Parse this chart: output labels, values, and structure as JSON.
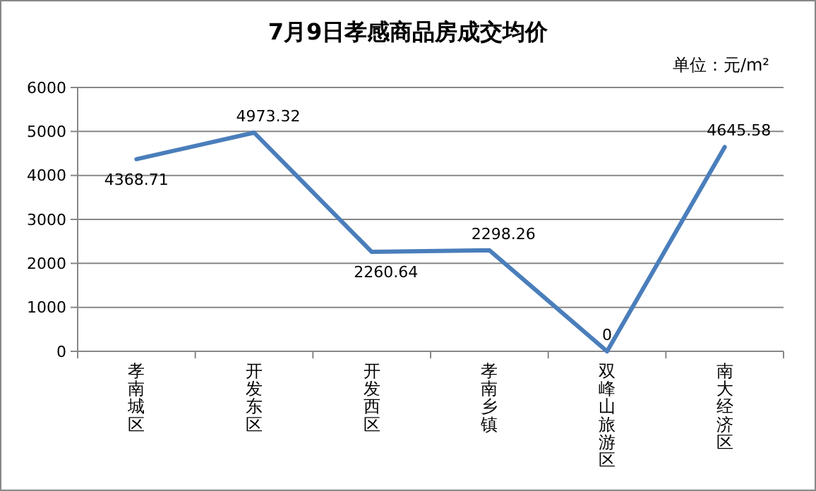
{
  "chart_data": {
    "type": "line",
    "title": "7月9日孝感商品房成交均价",
    "annotations": [
      "单位：元/m²"
    ],
    "categories": [
      "孝南城区",
      "开发东区",
      "开发西区",
      "孝南乡镇",
      "双峰山旅游区",
      "南大经济区"
    ],
    "series": [
      {
        "color": "#4a7ebb",
        "values": [
          4368.71,
          4973.32,
          2260.64,
          2298.26,
          0,
          4645.58
        ]
      }
    ],
    "ylim": [
      0,
      6000
    ],
    "yticks": [
      0,
      1000,
      2000,
      3000,
      4000,
      5000,
      6000
    ],
    "grid": "y",
    "data_labels": true,
    "marker": "none",
    "line_style": "solid"
  }
}
